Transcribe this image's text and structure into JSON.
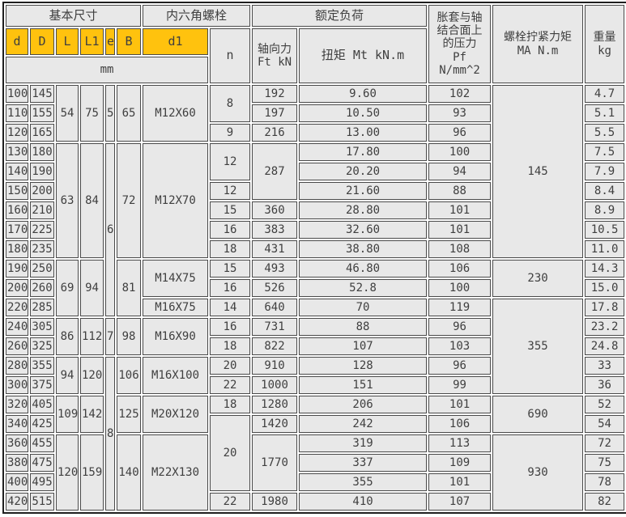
{
  "colors": {
    "header_cell_yellow": "#FFC20E",
    "cell_background": "#E8E8E8",
    "grid_line": "#4A4A4A",
    "outer_border": "#1F1F1F",
    "text": "#3F3F3F"
  },
  "table": {
    "groups": {
      "basic_dimensions": "基本尺寸",
      "hex_socket_bolt": "内六角螺栓",
      "rated_load": "额定负荷"
    },
    "columns": {
      "d": "d",
      "D": "D",
      "L": "L",
      "L1": "L1",
      "e": "e",
      "B": "B",
      "d1": "d1",
      "n": "n",
      "axial_force_lines": [
        "轴向力",
        "Ft kN"
      ],
      "torque": "扭矩 Mt kN.m",
      "pressure_lines": [
        "胀套与轴",
        "结合面上",
        "的压力",
        "Pf",
        "N/mm^2"
      ],
      "tightening_torque_lines": [
        "螺栓拧紧力矩",
        "MA N.m"
      ],
      "weight_lines": [
        "重量",
        "kg"
      ],
      "dimension_unit": "mm"
    },
    "rows": [
      [
        "100",
        "145",
        [
          "54",
          3
        ],
        [
          "75",
          3
        ],
        [
          "5",
          3
        ],
        [
          "65",
          3
        ],
        [
          "M12X60",
          3
        ],
        [
          "8",
          2
        ],
        "192",
        "9.60",
        "102",
        [
          "145",
          9
        ],
        "4.7"
      ],
      [
        "110",
        "155",
        "197",
        "10.50",
        "93",
        "5.1"
      ],
      [
        "120",
        "165",
        "9",
        "216",
        "13.00",
        "96",
        "5.5"
      ],
      [
        "130",
        "180",
        [
          "63",
          6
        ],
        [
          "84",
          6
        ],
        [
          "6",
          9
        ],
        [
          "72",
          6
        ],
        [
          "M12X70",
          6
        ],
        [
          "12",
          2
        ],
        [
          "287",
          3
        ],
        "17.80",
        "100",
        "7.5"
      ],
      [
        "140",
        "190",
        "20.20",
        "94",
        "7.9"
      ],
      [
        "150",
        "200",
        "12",
        "21.60",
        "88",
        "8.4"
      ],
      [
        "160",
        "210",
        "15",
        "360",
        "28.80",
        "101",
        "8.9"
      ],
      [
        "170",
        "225",
        "16",
        "383",
        "32.60",
        "101",
        "10.5"
      ],
      [
        "180",
        "235",
        "18",
        "431",
        "38.80",
        "108",
        "11.0"
      ],
      [
        "190",
        "250",
        [
          "69",
          3
        ],
        [
          "94",
          3
        ],
        [
          "81",
          3
        ],
        [
          "M14X75",
          2
        ],
        "15",
        "493",
        "46.80",
        "106",
        [
          "230",
          2
        ],
        "14.3"
      ],
      [
        "200",
        "260",
        "16",
        "526",
        "52.8",
        "100",
        "15.0"
      ],
      [
        "220",
        "285",
        "M16X75",
        "14",
        "640",
        "70",
        "119",
        [
          "355",
          5
        ],
        "17.8"
      ],
      [
        "240",
        "305",
        [
          "86",
          2
        ],
        [
          "112",
          2
        ],
        [
          "7",
          2
        ],
        [
          "98",
          2
        ],
        [
          "M16X90",
          2
        ],
        "16",
        "731",
        "88",
        "96",
        "23.2"
      ],
      [
        "260",
        "325",
        "18",
        "822",
        "107",
        "103",
        "24.8"
      ],
      [
        "280",
        "355",
        [
          "94",
          2
        ],
        [
          "120",
          2
        ],
        [
          "8",
          8
        ],
        [
          "106",
          2
        ],
        [
          "M16X100",
          2
        ],
        "20",
        "910",
        "128",
        "96",
        "33"
      ],
      [
        "300",
        "375",
        "22",
        "1000",
        "151",
        "99",
        "36"
      ],
      [
        "320",
        "405",
        [
          "109",
          2
        ],
        [
          "142",
          2
        ],
        [
          "125",
          2
        ],
        [
          "M20X120",
          2
        ],
        "18",
        "1280",
        "206",
        "101",
        [
          "690",
          2
        ],
        "52"
      ],
      [
        "340",
        "425",
        [
          "20",
          4
        ],
        "1420",
        "242",
        "106",
        "54"
      ],
      [
        "360",
        "455",
        [
          "120",
          4
        ],
        [
          "159",
          4
        ],
        [
          "140",
          4
        ],
        [
          "M22X130",
          4
        ],
        [
          "1770",
          3
        ],
        "319",
        "113",
        [
          "930",
          4
        ],
        "72"
      ],
      [
        "380",
        "475",
        "337",
        "109",
        "75"
      ],
      [
        "400",
        "495",
        "355",
        "101",
        "78"
      ],
      [
        "420",
        "515",
        "22",
        "1980",
        "410",
        "107",
        "82"
      ]
    ]
  }
}
